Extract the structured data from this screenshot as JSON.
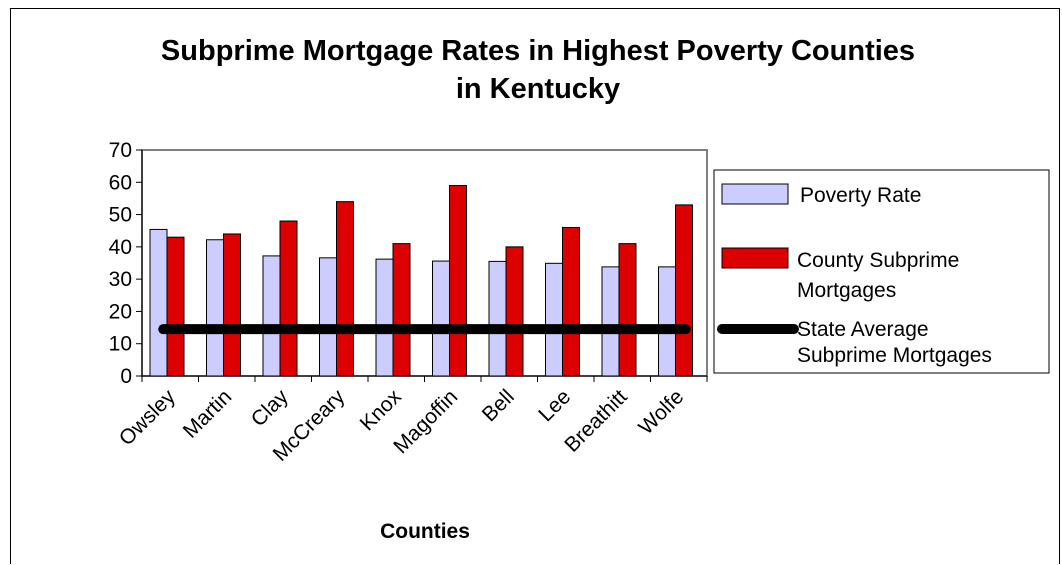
{
  "chart_data": {
    "type": "bar",
    "title_lines": [
      "Subprime Mortgage Rates in Highest Poverty Counties",
      "in Kentucky"
    ],
    "xlabel": "Counties",
    "ylabel": "",
    "ylim": [
      0,
      70
    ],
    "y_ticks": [
      "0",
      "10",
      "20",
      "30",
      "40",
      "50",
      "60",
      "70"
    ],
    "categories": [
      "Owsley",
      "Martin",
      "Clay",
      "McCreary",
      "Knox",
      "Magoffin",
      "Bell",
      "Lee",
      "Breathitt",
      "Wolfe"
    ],
    "series": [
      {
        "name": "Poverty Rate",
        "values": [
          45.4,
          42.2,
          37.2,
          36.6,
          36.2,
          35.6,
          35.5,
          34.9,
          33.8,
          33.8
        ],
        "color": "#ccccff"
      },
      {
        "name": "County Subprime Mortgages",
        "values": [
          43,
          44,
          48,
          54,
          41,
          59,
          40,
          46,
          41,
          53
        ],
        "color": "#dd0000"
      }
    ],
    "reference_line": {
      "name": "State Average Subprime Mortgages",
      "value": 14.5,
      "color": "#000000"
    },
    "legend_placement": "right",
    "grid": false
  }
}
